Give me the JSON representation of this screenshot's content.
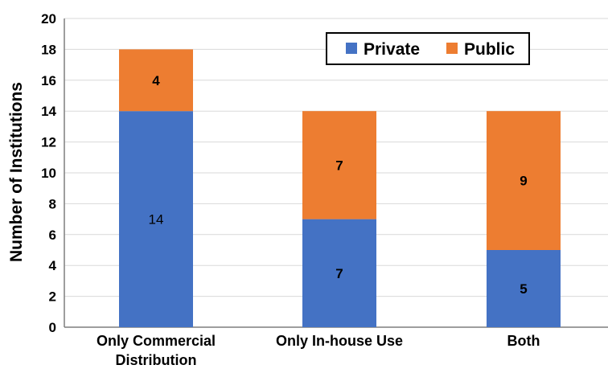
{
  "chart_data": {
    "type": "bar",
    "stacked": true,
    "categories": [
      [
        "Only Commercial",
        "Distribution"
      ],
      [
        "Only In-house Use"
      ],
      [
        "Both"
      ]
    ],
    "series": [
      {
        "name": "Private",
        "values": [
          14,
          7,
          5
        ],
        "color": "#4472C4",
        "label_bold": [
          false,
          true,
          true
        ]
      },
      {
        "name": "Public",
        "values": [
          4,
          7,
          9
        ],
        "color": "#ED7D31",
        "label_bold": [
          true,
          true,
          true
        ]
      }
    ],
    "title": "",
    "xlabel": "",
    "ylabel": "Number of Institutions",
    "ylim": [
      0,
      20
    ],
    "yticks": [
      0,
      2,
      4,
      6,
      8,
      10,
      12,
      14,
      16,
      18,
      20
    ],
    "grid": true,
    "legend": {
      "position": "top-right",
      "bordered": true
    }
  }
}
